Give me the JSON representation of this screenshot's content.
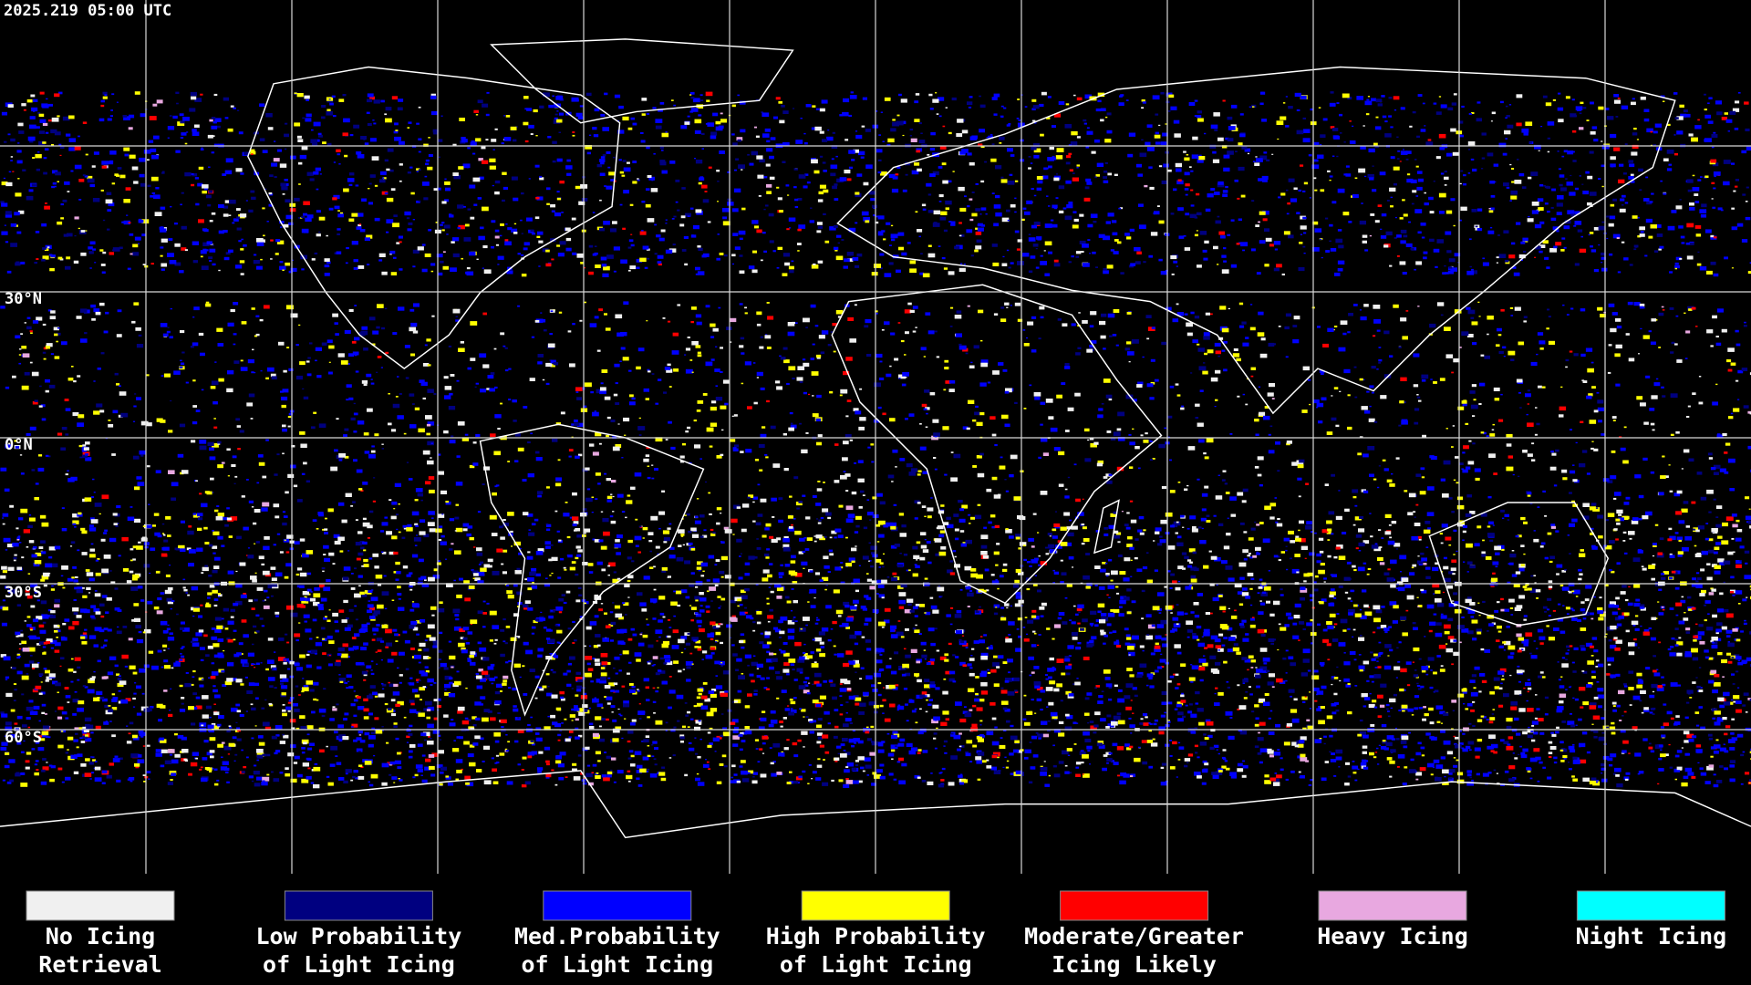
{
  "timestamp": "2025.219 05:00 UTC",
  "latitude_labels": [
    "30°N",
    "0°N",
    "30°S",
    "60°S"
  ],
  "legend": [
    {
      "lines": [
        "No Icing",
        "Retrieval"
      ],
      "color": "#f0f0f0"
    },
    {
      "lines": [
        "Low Probability",
        "of Light Icing"
      ],
      "color": "#000080"
    },
    {
      "lines": [
        "Med.Probability",
        "of Light Icing"
      ],
      "color": "#0000ff"
    },
    {
      "lines": [
        "High Probability",
        "of Light Icing"
      ],
      "color": "#ffff00"
    },
    {
      "lines": [
        "Moderate/Greater",
        "Icing Likely"
      ],
      "color": "#ff0000"
    },
    {
      "lines": [
        "Heavy Icing"
      ],
      "color": "#e8a8e0"
    },
    {
      "lines": [
        "Night Icing"
      ],
      "color": "#00ffff"
    }
  ]
}
